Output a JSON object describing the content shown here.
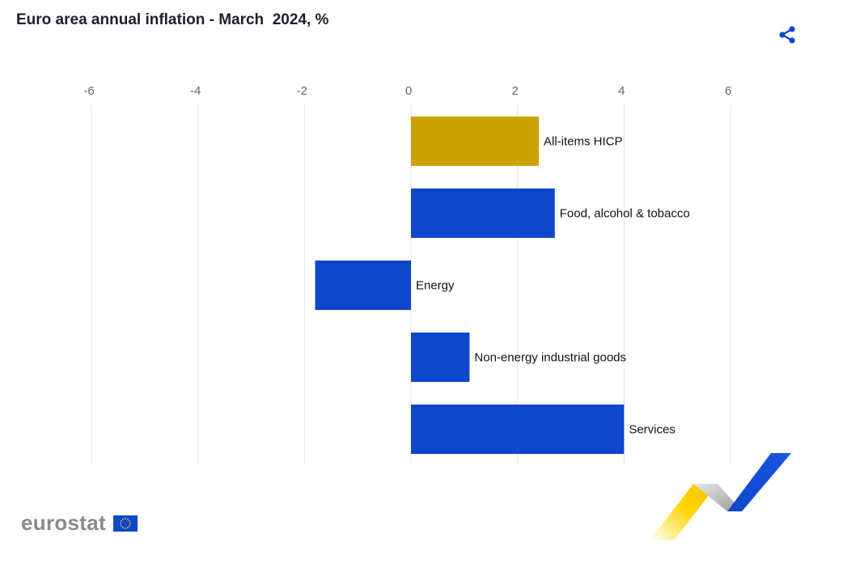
{
  "header": {
    "title": "Euro area annual inflation - March  2024, %",
    "share_icon": "share-icon"
  },
  "chart_data": {
    "type": "bar",
    "orientation": "horizontal",
    "title": "Euro area annual inflation - March  2024, %",
    "xlim": [
      -6,
      6
    ],
    "ticks": [
      -6,
      -4,
      -2,
      0,
      2,
      4,
      6
    ],
    "grid": true,
    "categories": [
      "All-items HICP",
      "Food, alcohol & tobacco",
      "Energy",
      "Non-energy industrial goods",
      "Services"
    ],
    "values": [
      2.4,
      2.7,
      -1.8,
      1.1,
      4.0
    ],
    "colors": [
      "#cca300",
      "#0e47cb",
      "#0e47cb",
      "#0e47cb",
      "#0e47cb"
    ]
  },
  "footer": {
    "logo_text": "eurostat",
    "flag_icon": "eu-flag-icon"
  },
  "colors": {
    "accent": "#0e47cb",
    "highlight": "#cca300",
    "grid": "#e3e3e3",
    "tick_text": "#666666"
  }
}
